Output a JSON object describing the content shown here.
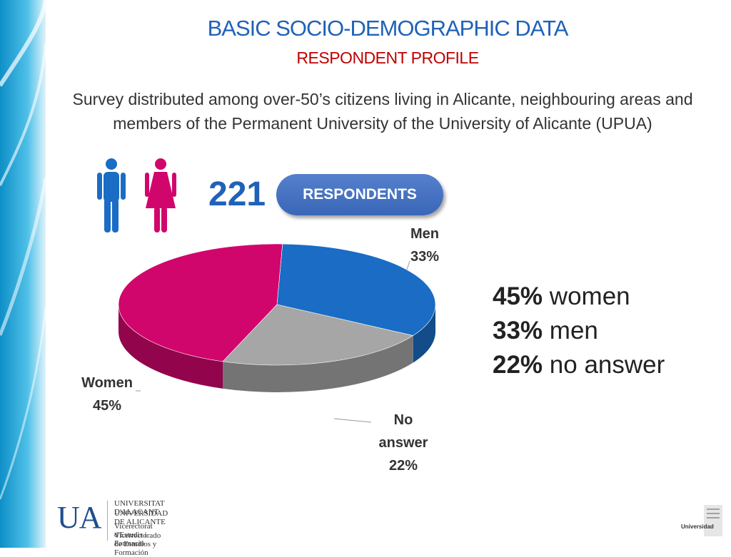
{
  "header": {
    "title": "BASIC SOCIO-DEMOGRAPHIC DATA",
    "subtitle": "RESPONDENT PROFILE"
  },
  "description": "Survey distributed among over-50’s citizens living in Alicante, neighbouring areas and members of the Permanent University of the University of Alicante (UPUA)",
  "respondents": {
    "count": "221",
    "label": "RESPONDENTS"
  },
  "summary": [
    {
      "value": "45%",
      "label": "women"
    },
    {
      "value": "33%",
      "label": "men"
    },
    {
      "value": "22%",
      "label": "no answer"
    }
  ],
  "chart_data": {
    "type": "pie",
    "title": "",
    "slices": [
      {
        "label": "Men",
        "value": 33,
        "display": "33%",
        "color": "#1a6cc4"
      },
      {
        "label": "No answer",
        "value": 22,
        "display": "22%",
        "color": "#a6a6a6"
      },
      {
        "label": "Women",
        "value": 45,
        "display": "45%",
        "color": "#d1066c"
      }
    ],
    "label_lines": [
      [
        "Men",
        "33%"
      ],
      [
        "No",
        "answer",
        "22%"
      ],
      [
        "Women",
        "45%"
      ]
    ]
  },
  "footer": {
    "logo": "UA",
    "university_ca": "UNIVERSITAT D'ALACANT",
    "university_es": "UNIVERSIDAD DE ALICANTE",
    "office_ca": "Vicerectorat d'Estudis i Formació",
    "office_es": "Vicerrectorado de Estudios y Formación",
    "corner_logo": "Universidad"
  },
  "colors": {
    "accent": "#1f62b8",
    "subtitle": "#c00000",
    "men": "#1a6cc4",
    "women": "#d1066c",
    "no_answer": "#a6a6a6"
  }
}
